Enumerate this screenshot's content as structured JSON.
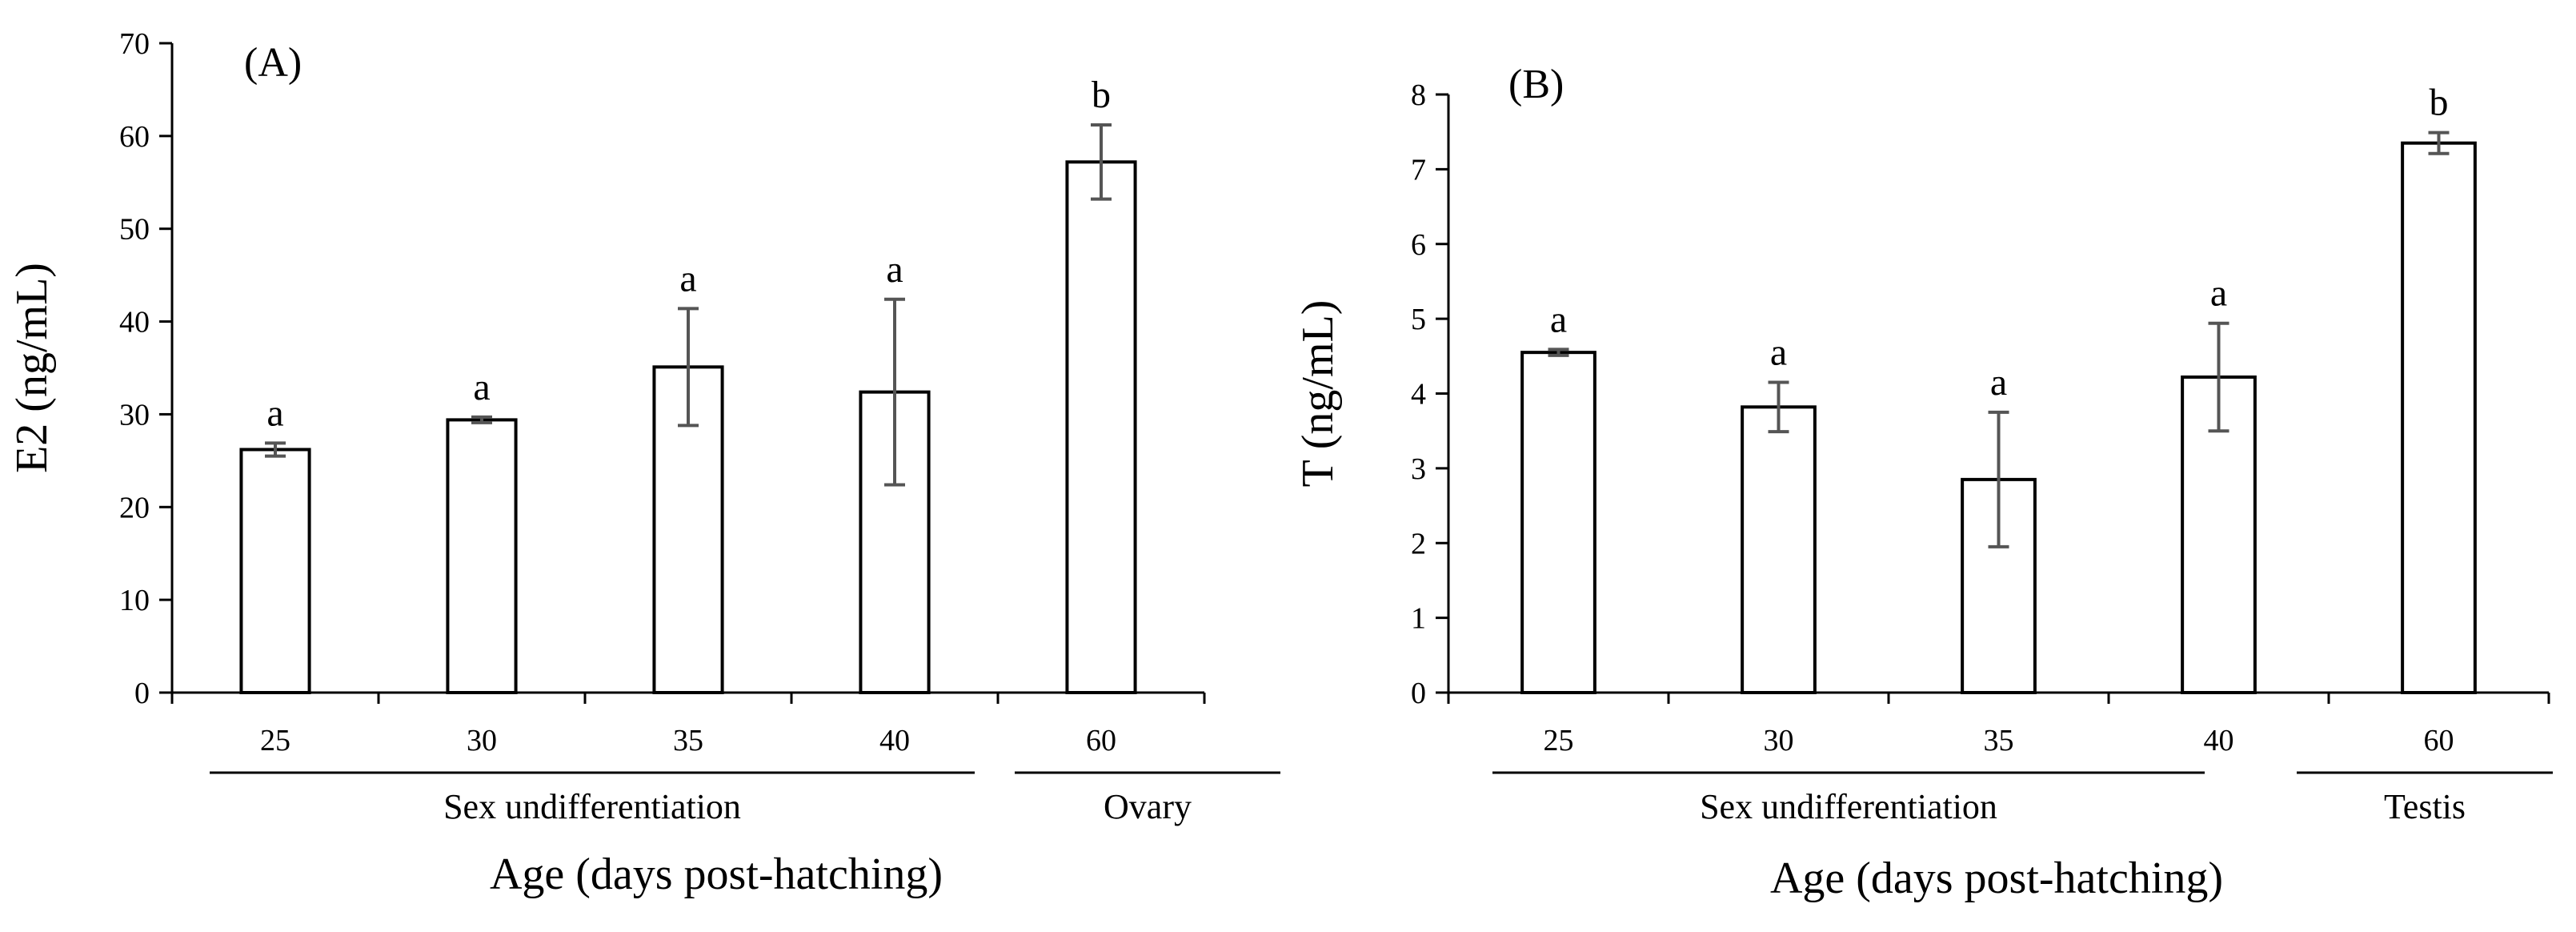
{
  "chart_data": [
    {
      "type": "bar",
      "panel_label": "(A)",
      "categories": [
        "25",
        "30",
        "35",
        "40",
        "60"
      ],
      "values": [
        26.2,
        29.4,
        35.1,
        32.4,
        57.2
      ],
      "errors": [
        0.7,
        0.3,
        6.3,
        10.0,
        4.0
      ],
      "significance": [
        "a",
        "a",
        "a",
        "a",
        "b"
      ],
      "ylabel": "E2 (ng/mL)",
      "ylim": [
        0,
        70
      ],
      "yticks": [
        0,
        10,
        20,
        30,
        40,
        50,
        60,
        70
      ],
      "groups": [
        {
          "label": "Sex undifferentiation",
          "from": 0,
          "to": 3
        },
        {
          "label": "Ovary",
          "from": 4,
          "to": 4
        }
      ],
      "xlabel": "Age (days post-hatching)"
    },
    {
      "type": "bar",
      "panel_label": "(B)",
      "categories": [
        "25",
        "30",
        "35",
        "40",
        "60"
      ],
      "values": [
        4.55,
        3.82,
        2.85,
        4.22,
        7.35
      ],
      "errors": [
        0.04,
        0.33,
        0.9,
        0.72,
        0.14
      ],
      "significance": [
        "a",
        "a",
        "a",
        "a",
        "b"
      ],
      "ylabel": "T (ng/mL)",
      "ylim": [
        0,
        8
      ],
      "yticks": [
        0,
        1,
        2,
        3,
        4,
        5,
        6,
        7,
        8
      ],
      "groups": [
        {
          "label": "Sex undifferentiation",
          "from": 0,
          "to": 3
        },
        {
          "label": "Testis",
          "from": 4,
          "to": 4
        }
      ],
      "xlabel": "Age (days post-hatching)"
    }
  ]
}
